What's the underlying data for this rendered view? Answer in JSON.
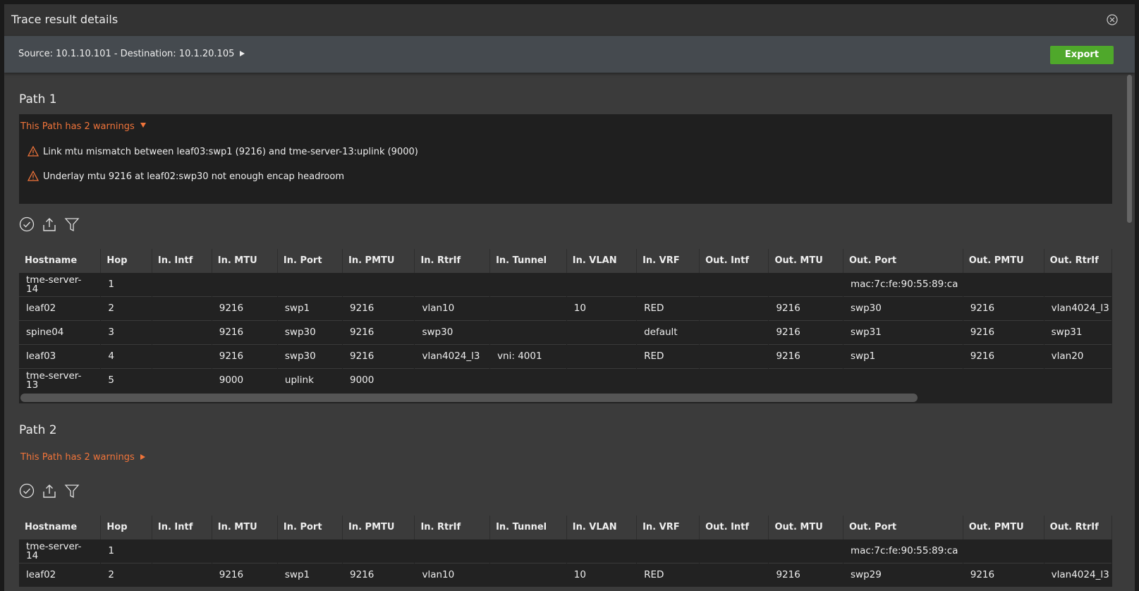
{
  "modal": {
    "title": "Trace result details",
    "source_line": "Source: 10.1.10.101 - Destination: 10.1.20.105",
    "export_button": "Export"
  },
  "paths": [
    {
      "title": "Path 1",
      "warning_toggle": "This Path has 2 warnings",
      "expanded": true,
      "warnings": [
        "Link mtu mismatch between leaf03:swp1 (9216) and tme-server-13:uplink (9000)",
        "Underlay mtu 9216 at leaf02:swp30 not enough encap headroom"
      ],
      "table": {
        "columns": [
          "Hostname",
          "Hop",
          "In. Intf",
          "In. MTU",
          "In. Port",
          "In. PMTU",
          "In. RtrIf",
          "In. Tunnel",
          "In. VLAN",
          "In. VRF",
          "Out. Intf",
          "Out. MTU",
          "Out. Port",
          "Out. PMTU",
          "Out. RtrIf"
        ],
        "rows": [
          [
            "tme-server-14",
            1,
            null,
            null,
            null,
            null,
            null,
            null,
            null,
            null,
            null,
            null,
            "mac:7c:fe:90:55:89:ca",
            null,
            null
          ],
          [
            "leaf02",
            2,
            null,
            9216,
            "swp1",
            9216,
            "vlan10",
            null,
            10,
            "RED",
            null,
            9216,
            "swp30",
            9216,
            "vlan4024_l3"
          ],
          [
            "spine04",
            3,
            null,
            9216,
            "swp30",
            9216,
            "swp30",
            null,
            null,
            "default",
            null,
            9216,
            "swp31",
            9216,
            "swp31"
          ],
          [
            "leaf03",
            4,
            null,
            9216,
            "swp30",
            9216,
            "vlan4024_l3",
            "vni: 4001",
            null,
            "RED",
            null,
            9216,
            "swp1",
            9216,
            "vlan20"
          ],
          [
            "tme-server-13",
            5,
            null,
            9000,
            "uplink",
            9000,
            null,
            null,
            null,
            null,
            null,
            null,
            null,
            null,
            null
          ]
        ]
      }
    },
    {
      "title": "Path 2",
      "warning_toggle": "This Path has 2 warnings",
      "expanded": false,
      "table": {
        "columns": [
          "Hostname",
          "Hop",
          "In. Intf",
          "In. MTU",
          "In. Port",
          "In. PMTU",
          "In. RtrIf",
          "In. Tunnel",
          "In. VLAN",
          "In. VRF",
          "Out. Intf",
          "Out. MTU",
          "Out. Port",
          "Out. PMTU",
          "Out. RtrIf"
        ],
        "rows": [
          [
            "tme-server-14",
            1,
            null,
            null,
            null,
            null,
            null,
            null,
            null,
            null,
            null,
            null,
            "mac:7c:fe:90:55:89:ca",
            null,
            null
          ],
          [
            "leaf02",
            2,
            null,
            9216,
            "swp1",
            9216,
            "vlan10",
            null,
            10,
            "RED",
            null,
            9216,
            "swp29",
            9216,
            "vlan4024_l3"
          ]
        ]
      }
    }
  ]
}
